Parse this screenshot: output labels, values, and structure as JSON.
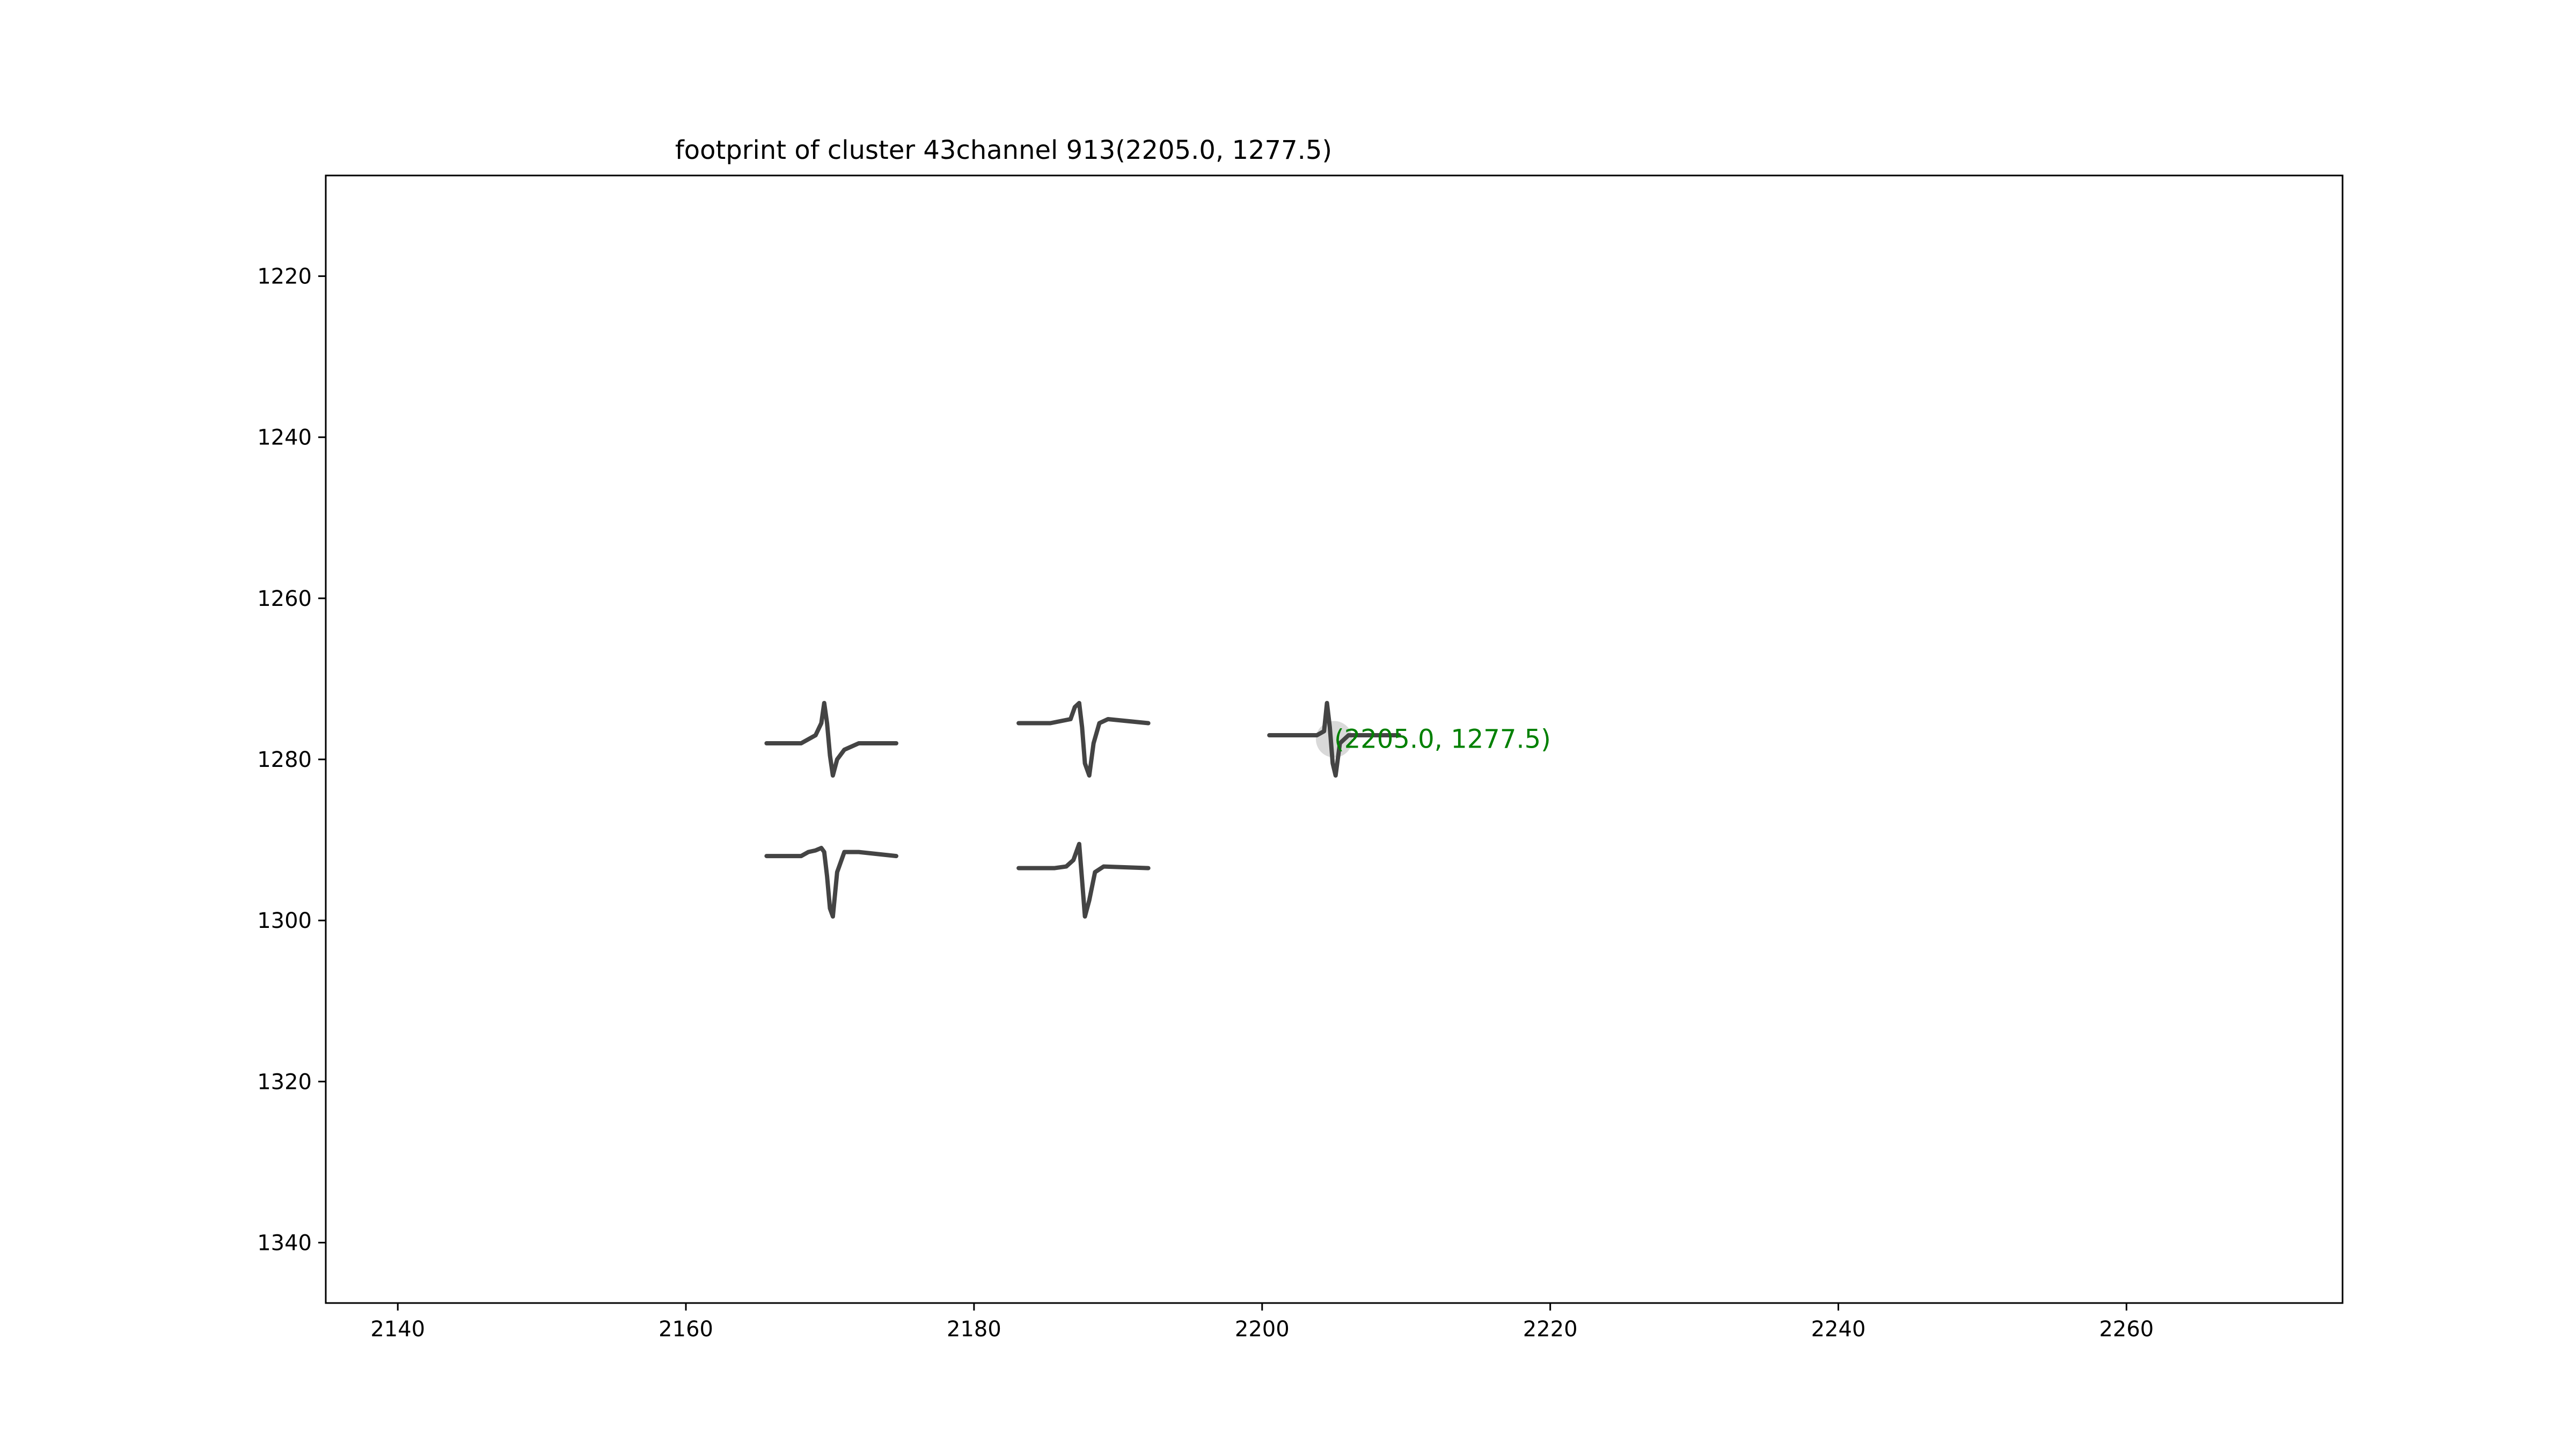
{
  "chart_data": {
    "type": "line",
    "title": "footprint of cluster 43channel 913(2205.0, 1277.5)",
    "xlabel": "",
    "ylabel": "",
    "xlim": [
      2135,
      2275
    ],
    "ylim": [
      1347.5,
      1207.5
    ],
    "y_inverted": true,
    "grid": false,
    "x_ticks": [
      2140,
      2160,
      2180,
      2200,
      2220,
      2240,
      2260
    ],
    "y_ticks": [
      1220,
      1240,
      1260,
      1280,
      1300,
      1320,
      1340
    ],
    "colors": {
      "waveform": "#444444",
      "annotation": "#008000",
      "marker": "#d9d9d9"
    },
    "waveforms": [
      {
        "channel_x": 2170,
        "channel_y": 1278,
        "x": [
          2165.6,
          2168.0,
          2169.0,
          2169.4,
          2169.6,
          2169.8,
          2170.0,
          2170.2,
          2170.5,
          2171.0,
          2172.0,
          2174.6
        ],
        "y": [
          1278.0,
          1278.0,
          1277.0,
          1275.5,
          1273.0,
          1275.5,
          1279.5,
          1282.0,
          1280.0,
          1278.8,
          1278.0,
          1278.0
        ]
      },
      {
        "channel_x": 2187.5,
        "channel_y": 1275.5,
        "x": [
          2183.1,
          2185.3,
          2186.7,
          2187.0,
          2187.3,
          2187.5,
          2187.7,
          2188.0,
          2188.3,
          2188.7,
          2189.3,
          2192.1
        ],
        "y": [
          1275.5,
          1275.5,
          1275.0,
          1273.5,
          1273.0,
          1276.0,
          1280.5,
          1282.0,
          1278.0,
          1275.5,
          1275.0,
          1275.5
        ]
      },
      {
        "channel_x": 2205,
        "channel_y": 1277,
        "x": [
          2200.5,
          2203.8,
          2204.3,
          2204.5,
          2204.7,
          2204.9,
          2205.1,
          2205.4,
          2206.0,
          2209.5
        ],
        "y": [
          1277.0,
          1277.0,
          1276.5,
          1273.0,
          1276.0,
          1280.5,
          1282.0,
          1278.0,
          1277.0,
          1277.0
        ]
      },
      {
        "channel_x": 2170,
        "channel_y": 1292,
        "x": [
          2165.6,
          2168.0,
          2168.5,
          2169.0,
          2169.4,
          2169.6,
          2169.8,
          2170.0,
          2170.2,
          2170.5,
          2171.0,
          2172.0,
          2174.6
        ],
        "y": [
          1292.0,
          1292.0,
          1291.5,
          1291.3,
          1291.0,
          1291.5,
          1294.5,
          1298.5,
          1299.5,
          1294.0,
          1291.5,
          1291.5,
          1292.0
        ]
      },
      {
        "channel_x": 2187.5,
        "channel_y": 1293.5,
        "x": [
          2183.1,
          2185.6,
          2186.4,
          2186.9,
          2187.1,
          2187.3,
          2187.5,
          2187.7,
          2188.0,
          2188.4,
          2189.0,
          2192.1
        ],
        "y": [
          1293.5,
          1293.5,
          1293.3,
          1292.5,
          1291.5,
          1290.5,
          1295.0,
          1299.5,
          1297.5,
          1294.0,
          1293.3,
          1293.5
        ]
      }
    ],
    "marker": {
      "x": 2205,
      "y": 1277.5
    },
    "annotation": {
      "text": "(2205.0, 1277.5)",
      "x": 2205,
      "y": 1277.5
    }
  }
}
